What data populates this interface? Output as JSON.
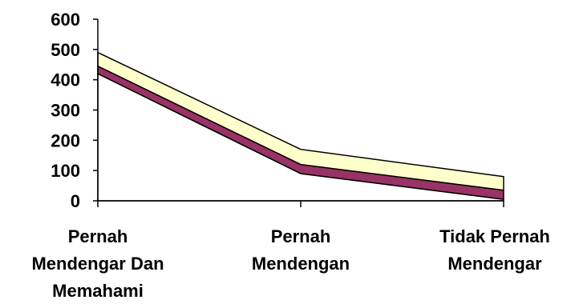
{
  "chart_data": {
    "type": "area",
    "stacked": true,
    "categories": [
      [
        "Pernah",
        "Mendengar Dan",
        "Memahami"
      ],
      [
        "Pernah",
        "Mendengan"
      ],
      [
        "Tidak Pernah",
        "Mendengar"
      ]
    ],
    "series": [
      {
        "values": [
          420,
          90,
          5
        ],
        "color": "#FFFFFF"
      },
      {
        "values": [
          25,
          30,
          30
        ],
        "color": "#993366"
      },
      {
        "values": [
          45,
          50,
          45
        ],
        "color": "#FFFFCC"
      }
    ],
    "ylim": [
      0,
      600
    ],
    "yticks": [
      0,
      100,
      200,
      300,
      400,
      500,
      600
    ],
    "ytick_labels": [
      "0",
      "100",
      "200",
      "300",
      "400",
      "500",
      "600"
    ],
    "grid": false,
    "legend": "none",
    "title": "",
    "xlabel": "",
    "ylabel": ""
  }
}
